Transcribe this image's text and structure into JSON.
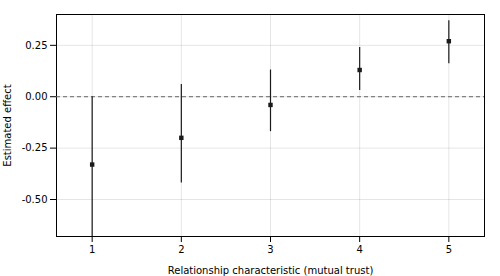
{
  "chart_data": {
    "type": "errorbar",
    "x": [
      1,
      2,
      3,
      4,
      5
    ],
    "values": [
      -0.33,
      -0.2,
      -0.04,
      0.13,
      0.27
    ],
    "ci_lower": [
      -0.68,
      -0.42,
      -0.17,
      0.03,
      0.16
    ],
    "ci_upper": [
      0.0,
      0.06,
      0.13,
      0.24,
      0.37
    ],
    "xlabel": "Relationship characteristic (mutual trust)",
    "ylabel": "Estimated effect",
    "xlim": [
      0.6,
      5.4
    ],
    "xticks": [
      1,
      2,
      3,
      4,
      5
    ],
    "ylim": [
      -0.68,
      0.4
    ],
    "yticks": [
      {
        "value": -0.5,
        "label": "-0.50"
      },
      {
        "value": -0.25,
        "label": "-0.25"
      },
      {
        "value": 0.0,
        "label": "0.00"
      },
      {
        "value": 0.25,
        "label": "0.25"
      }
    ],
    "hline_y": 0.0,
    "color": "#1a1a1a",
    "marker": "square",
    "grid": true
  }
}
